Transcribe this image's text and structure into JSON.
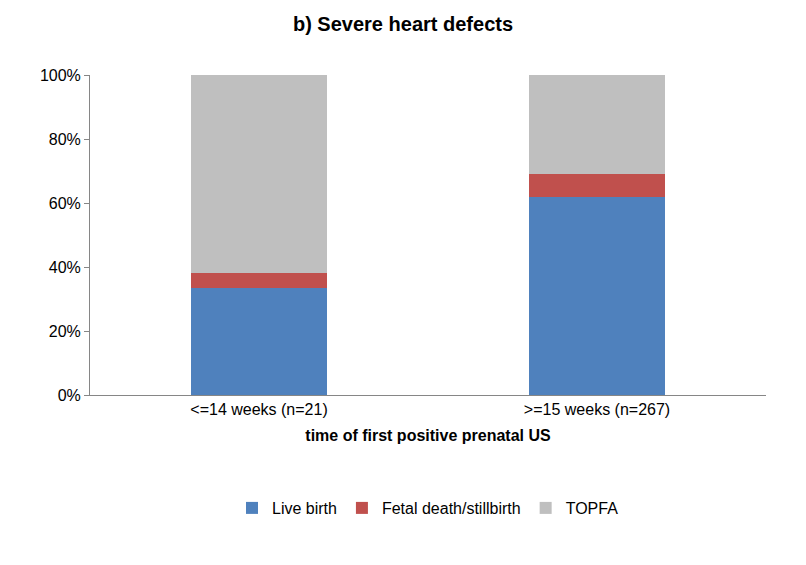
{
  "chart_data": {
    "type": "bar",
    "title": "b) Severe heart defects",
    "x_label": "time of first positive prenatal US",
    "categories": [
      "<=14 weeks (n=21)",
      ">=15 weeks (n=267)"
    ],
    "series": [
      {
        "name": "Live birth",
        "color": "#4f81bd",
        "values": [
          33.3,
          62
        ]
      },
      {
        "name": "Fetal death/stillbirth",
        "color": "#c0504d",
        "values": [
          4.8,
          7
        ]
      },
      {
        "name": "TOPFA",
        "color": "#bfbfbf",
        "values": [
          61.9,
          31
        ]
      }
    ],
    "stacked": true,
    "ylim": [
      0,
      100
    ],
    "yticks": [
      {
        "value": 0,
        "label": "0%"
      },
      {
        "value": 20,
        "label": "20%"
      },
      {
        "value": 40,
        "label": "40%"
      },
      {
        "value": 60,
        "label": "60%"
      },
      {
        "value": 80,
        "label": "80%"
      },
      {
        "value": 100,
        "label": "100%"
      }
    ],
    "grid": false,
    "legend": "bottom"
  }
}
